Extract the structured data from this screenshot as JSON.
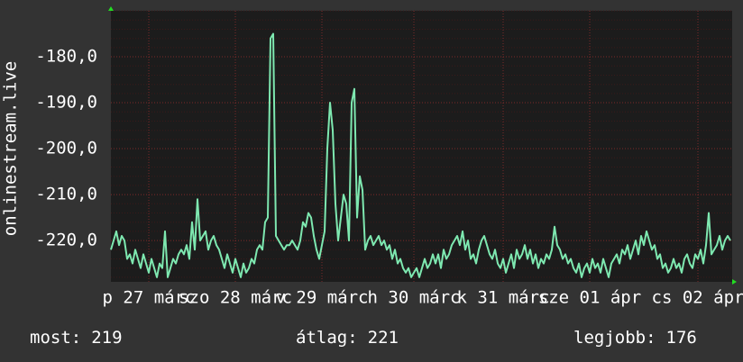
{
  "chart_data": {
    "type": "line",
    "y_label": "onlinestream.live",
    "ylim": [
      -229,
      -170
    ],
    "yticks": [
      {
        "value": -180,
        "label": "-180,0"
      },
      {
        "value": -190,
        "label": "-190,0"
      },
      {
        "value": -200,
        "label": "-200,0"
      },
      {
        "value": -210,
        "label": "-210,0"
      },
      {
        "value": -220,
        "label": "-220,0"
      }
    ],
    "xticks": [
      {
        "value": 14,
        "label": "p 27 márc"
      },
      {
        "value": 46,
        "label": "szo 28 márc"
      },
      {
        "value": 78,
        "label": "v 29 márc"
      },
      {
        "value": 112,
        "label": "h 30 márc"
      },
      {
        "value": 145,
        "label": "k 31 márc"
      },
      {
        "value": 177,
        "label": "sze 01 ápr"
      },
      {
        "value": 217,
        "label": "cs 02 ápr"
      }
    ],
    "grid": true,
    "series": [
      {
        "color": "#7ee8b0",
        "values": [
          -222,
          -220,
          -218,
          -221,
          -219,
          -220,
          -224,
          -223,
          -225,
          -222,
          -224,
          -226,
          -223,
          -225,
          -227,
          -224,
          -226,
          -228,
          -225,
          -226,
          -218,
          -228,
          -226,
          -224,
          -225,
          -223,
          -222,
          -223,
          -221,
          -224,
          -216,
          -222,
          -211,
          -220,
          -219,
          -218,
          -222,
          -220,
          -219,
          -221,
          -222,
          -224,
          -226,
          -223,
          -225,
          -227,
          -224,
          -226,
          -228,
          -225,
          -227,
          -226,
          -224,
          -225,
          -222,
          -221,
          -222,
          -216,
          -215,
          -176,
          -175,
          -219,
          -220,
          -221,
          -222,
          -221,
          -221,
          -220,
          -221,
          -222,
          -220,
          -216,
          -217,
          -214,
          -215,
          -219,
          -222,
          -224,
          -221,
          -218,
          -200,
          -190,
          -196,
          -212,
          -220,
          -215,
          -210,
          -212,
          -220,
          -190,
          -187,
          -215,
          -206,
          -209,
          -222,
          -220,
          -219,
          -221,
          -220,
          -219,
          -221,
          -220,
          -222,
          -221,
          -224,
          -222,
          -225,
          -224,
          -226,
          -227,
          -226,
          -228,
          -227,
          -226,
          -228,
          -226,
          -224,
          -226,
          -225,
          -223,
          -225,
          -223,
          -226,
          -222,
          -224,
          -223,
          -221,
          -220,
          -219,
          -221,
          -218,
          -222,
          -220,
          -224,
          -223,
          -225,
          -222,
          -220,
          -219,
          -221,
          -223,
          -224,
          -222,
          -225,
          -226,
          -224,
          -227,
          -225,
          -223,
          -226,
          -222,
          -224,
          -223,
          -221,
          -224,
          -222,
          -225,
          -223,
          -226,
          -224,
          -225,
          -223,
          -224,
          -222,
          -217,
          -221,
          -222,
          -224,
          -223,
          -225,
          -224,
          -226,
          -227,
          -225,
          -228,
          -226,
          -225,
          -227,
          -224,
          -226,
          -225,
          -227,
          -224,
          -226,
          -228,
          -225,
          -224,
          -223,
          -225,
          -222,
          -223,
          -221,
          -224,
          -222,
          -220,
          -223,
          -219,
          -221,
          -218,
          -220,
          -222,
          -221,
          -224,
          -223,
          -226,
          -225,
          -227,
          -226,
          -224,
          -226,
          -225,
          -227,
          -224,
          -223,
          -225,
          -226,
          -223,
          -224,
          -222,
          -225,
          -221,
          -214,
          -223,
          -222,
          -221,
          -219,
          -222,
          -220,
          -219,
          -220
        ]
      }
    ],
    "stats": [
      {
        "label": "most:",
        "value": 219
      },
      {
        "label": "átlag:",
        "value": 221
      },
      {
        "label": "legjobb:",
        "value": 176
      }
    ]
  }
}
